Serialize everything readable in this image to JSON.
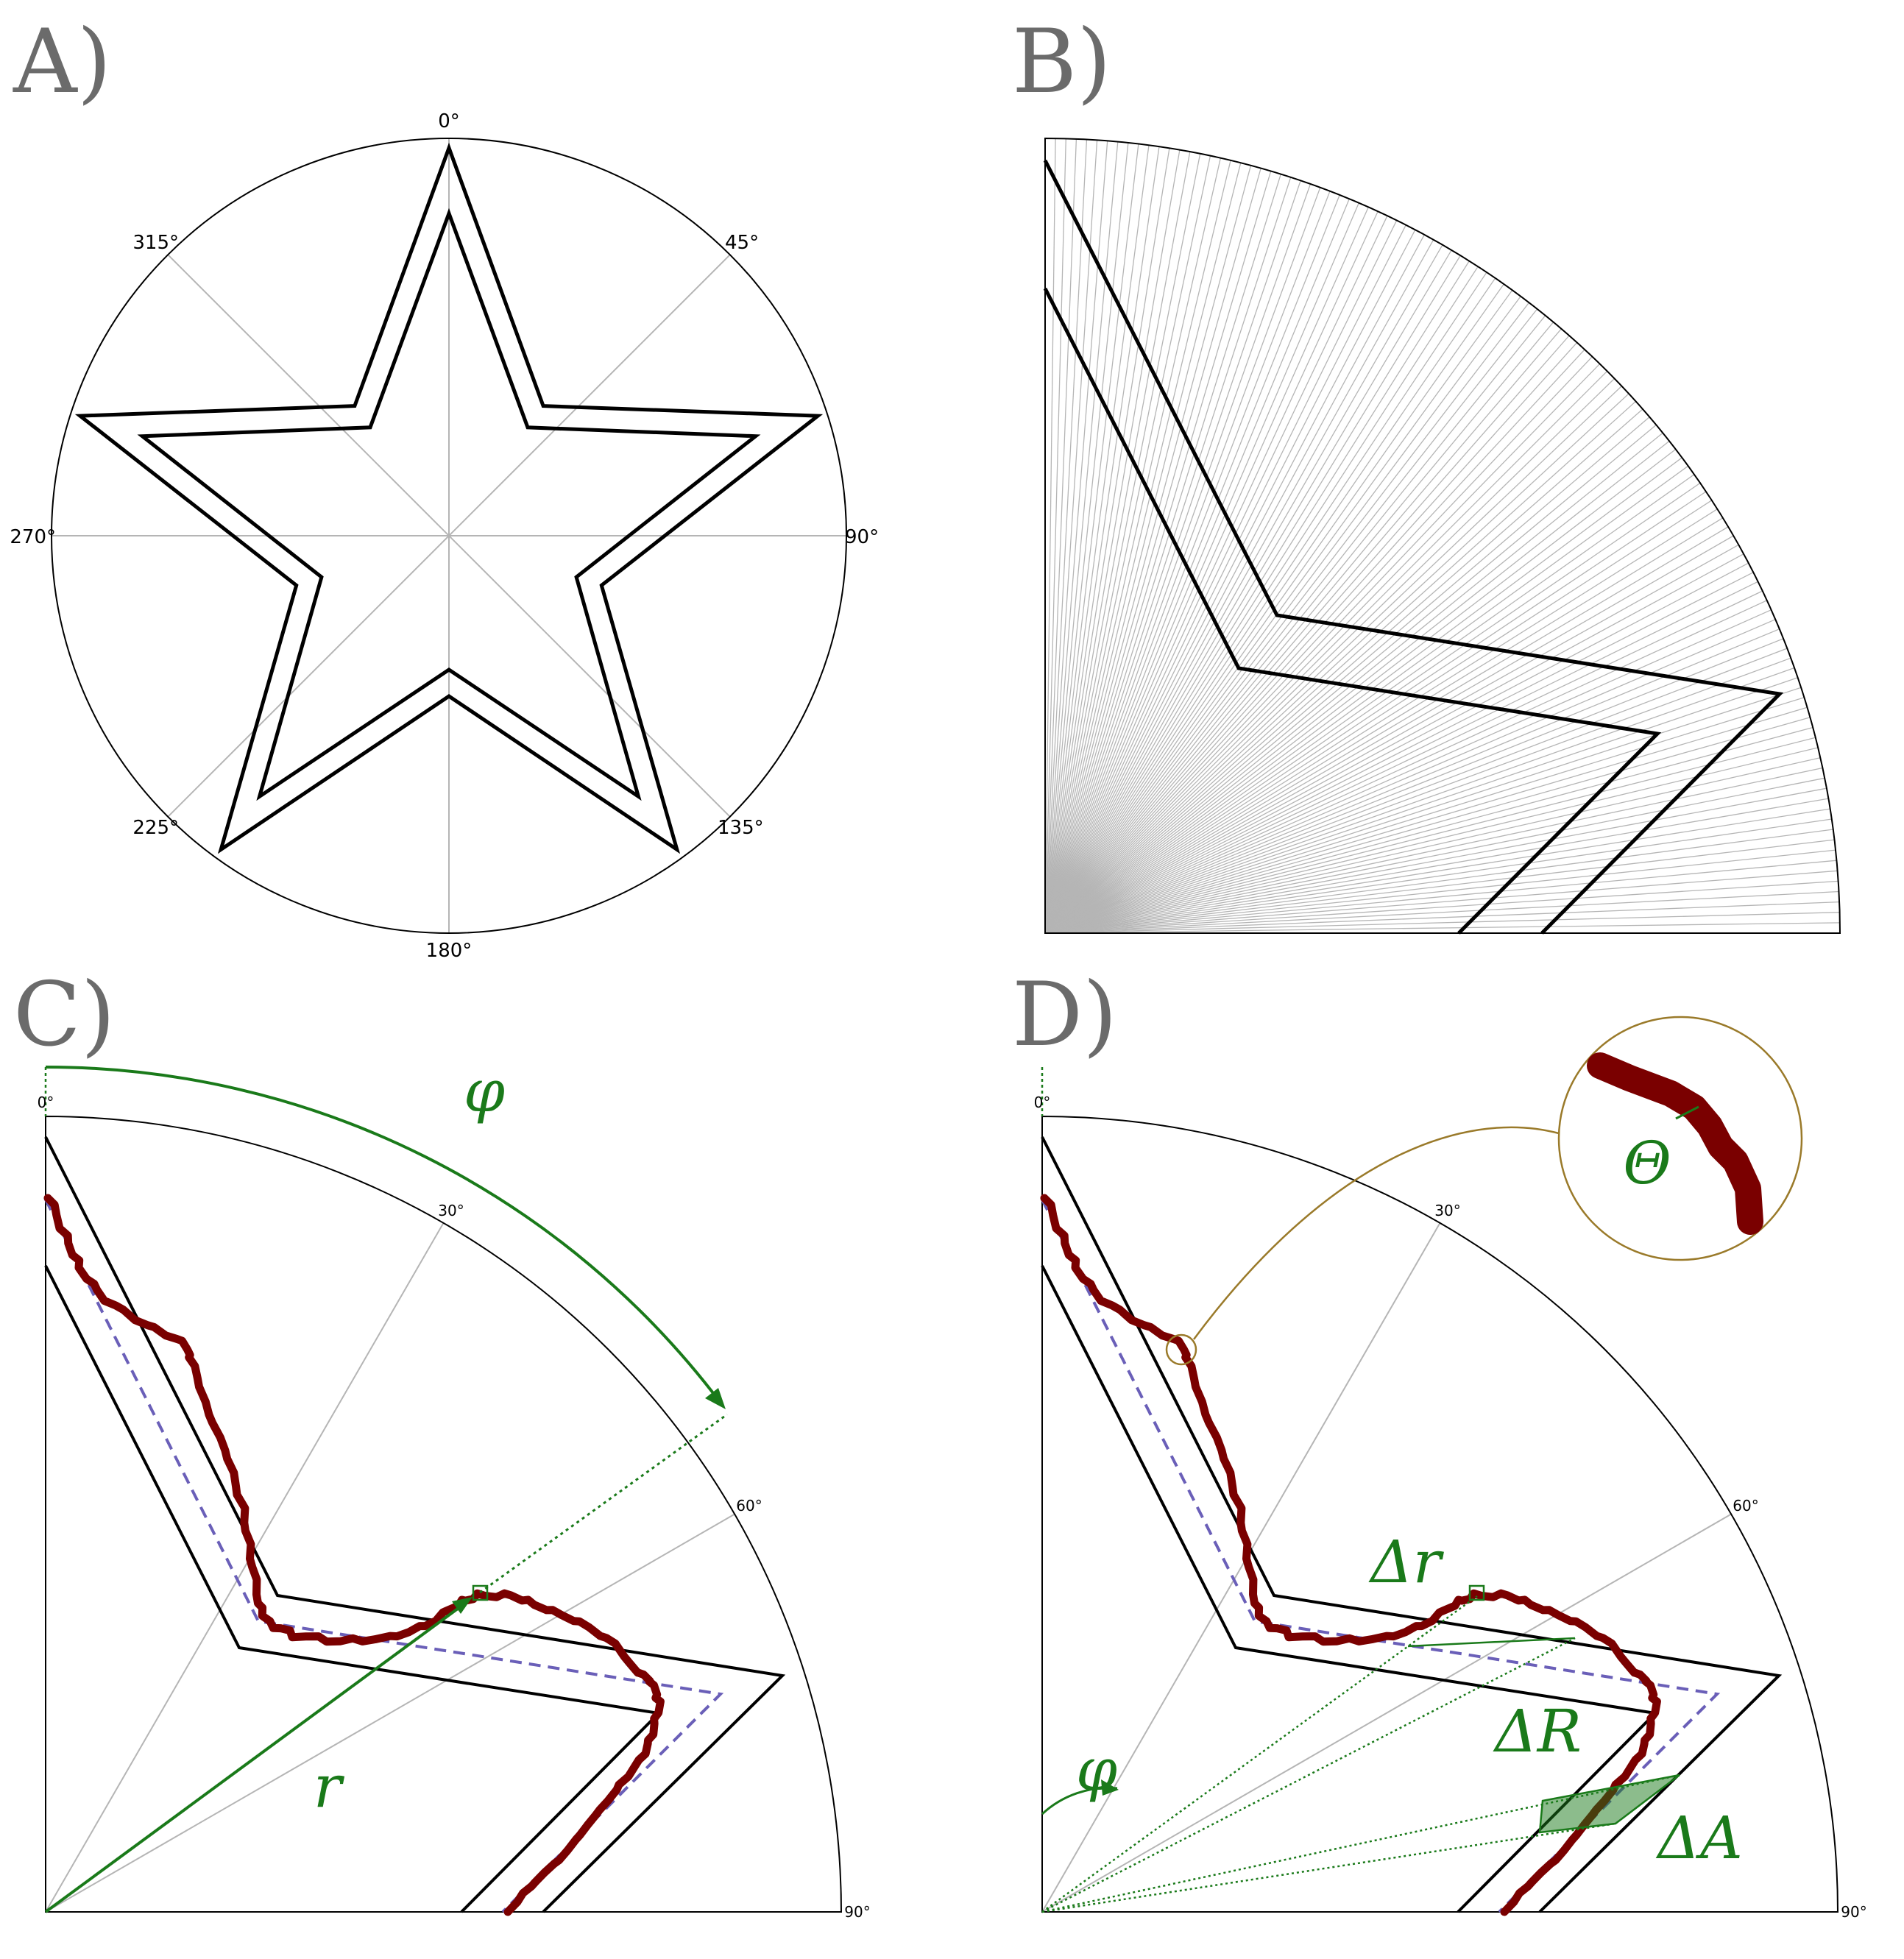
{
  "panels": {
    "a": {
      "label": "A)",
      "ticks": [
        "0°",
        "45°",
        "90°",
        "135°",
        "180°",
        "225°",
        "270°",
        "315°"
      ]
    },
    "b": {
      "label": "B)"
    },
    "c": {
      "label": "C)",
      "ticks": [
        "0°",
        "30°",
        "60°",
        "90°"
      ],
      "phi": "φ",
      "r": "r"
    },
    "d": {
      "label": "D)",
      "ticks": [
        "0°",
        "30°",
        "60°",
        "90°"
      ],
      "phi": "φ",
      "theta": "Θ",
      "delta_r": "Δr",
      "delta_R": "ΔR",
      "delta_A": "ΔA"
    }
  },
  "colors": {
    "outline": "#000000",
    "grid": "#b5b5b5",
    "curve": "#7a0000",
    "annotation": "#1a7a1a",
    "dashed": "#6a5fb8",
    "zoom": "#9a7a2a",
    "label": "#6b6b6b"
  }
}
